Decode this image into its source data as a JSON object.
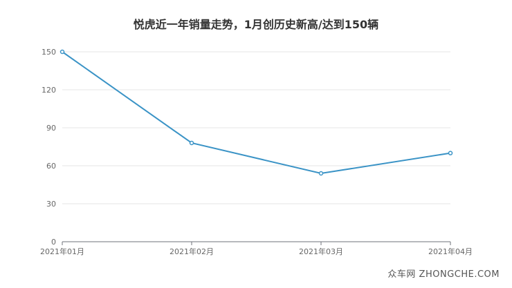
{
  "chart_data": {
    "type": "line",
    "title": "悦虎近一年销量走势，1月创历史新高/达到150辆",
    "categories": [
      "2021年01月",
      "2021年02月",
      "2021年03月",
      "2021年04月"
    ],
    "series": [
      {
        "values": [
          150,
          78,
          54,
          70
        ]
      }
    ],
    "ylim": [
      0,
      150
    ],
    "yticks": [
      0,
      30,
      60,
      90,
      120,
      150
    ],
    "grid": true,
    "line_color": "#3a93c6"
  },
  "watermark": "众车网 ZHONGCHE.COM"
}
